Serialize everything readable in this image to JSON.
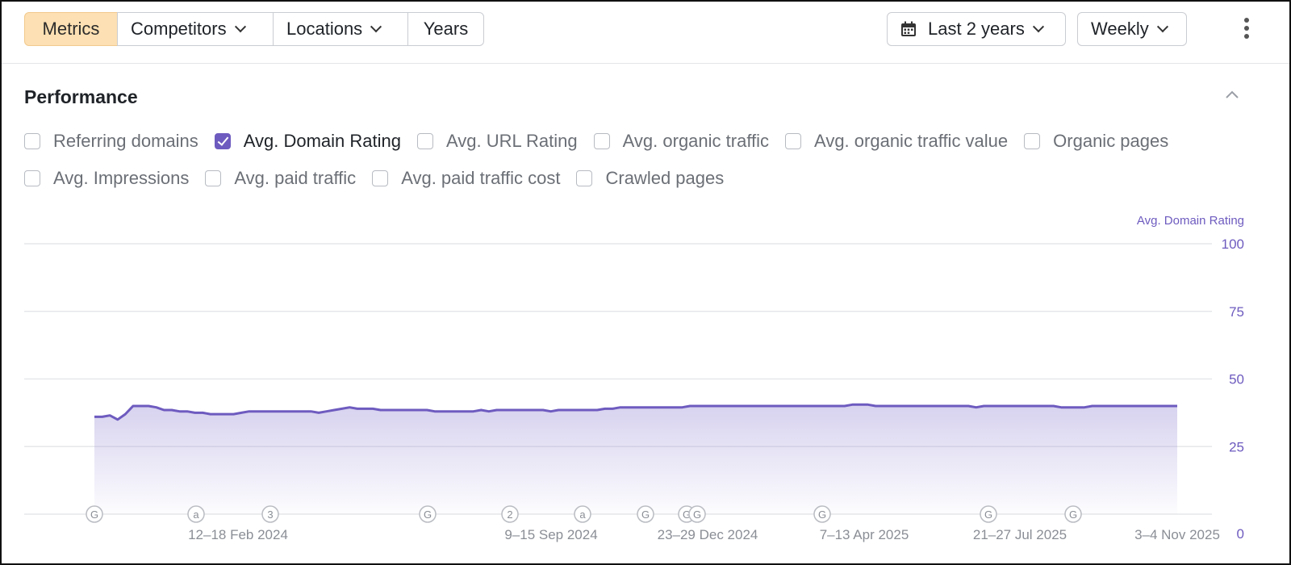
{
  "toolbar": {
    "tabs": [
      "Metrics",
      "Competitors",
      "Locations",
      "Years"
    ],
    "date_range": "Last 2 years",
    "interval": "Weekly"
  },
  "section": {
    "title": "Performance"
  },
  "metrics": [
    {
      "label": "Referring domains",
      "checked": false
    },
    {
      "label": "Avg. Domain Rating",
      "checked": true
    },
    {
      "label": "Avg. URL Rating",
      "checked": false
    },
    {
      "label": "Avg. organic traffic",
      "checked": false
    },
    {
      "label": "Avg. organic traffic value",
      "checked": false
    },
    {
      "label": "Organic pages",
      "checked": false
    },
    {
      "label": "Avg. Impressions",
      "checked": false
    },
    {
      "label": "Avg. paid traffic",
      "checked": false
    },
    {
      "label": "Avg. paid traffic cost",
      "checked": false
    },
    {
      "label": "Crawled pages",
      "checked": false
    }
  ],
  "chart_data": {
    "type": "area",
    "series": [
      {
        "name": "Avg. Domain Rating",
        "color": "#6e5bbf",
        "values": [
          36,
          36,
          36.5,
          35,
          37,
          40,
          40,
          40,
          39.5,
          38.5,
          38.5,
          38,
          38,
          37.5,
          37.5,
          37,
          37,
          37,
          37,
          37.5,
          38,
          38,
          38,
          38,
          38,
          38,
          38,
          38,
          38,
          37.5,
          38,
          38.5,
          39,
          39.5,
          39,
          39,
          39,
          38.5,
          38.5,
          38.5,
          38.5,
          38.5,
          38.5,
          38.5,
          38,
          38,
          38,
          38,
          38,
          38,
          38.5,
          38,
          38.5,
          38.5,
          38.5,
          38.5,
          38.5,
          38.5,
          38.5,
          38,
          38.5,
          38.5,
          38.5,
          38.5,
          38.5,
          38.5,
          39,
          39,
          39.5,
          39.5,
          39.5,
          39.5,
          39.5,
          39.5,
          39.5,
          39.5,
          39.5,
          40,
          40,
          40,
          40,
          40,
          40,
          40,
          40,
          40,
          40,
          40,
          40,
          40,
          40,
          40,
          40,
          40,
          40,
          40,
          40,
          40,
          40.5,
          40.5,
          40.5,
          40,
          40,
          40,
          40,
          40,
          40,
          40,
          40,
          40,
          40,
          40,
          40,
          40,
          39.5,
          40,
          40,
          40,
          40,
          40,
          40,
          40,
          40,
          40,
          40,
          39.5,
          39.5,
          39.5,
          39.5,
          40,
          40,
          40,
          40,
          40,
          40,
          40,
          40,
          40,
          40,
          40,
          40
        ]
      }
    ],
    "y_axis_label": "Avg. Domain Rating",
    "ylim": [
      0,
      100
    ],
    "yticks": [
      0,
      25,
      50,
      75,
      100
    ],
    "x_tick_labels": [
      "12–18 Feb 2024",
      "9–15 Sep 2024",
      "23–29 Dec 2024",
      "7–13 Apr 2025",
      "21–27 Jul 2025",
      "3–4 Nov 2025"
    ],
    "annotation_markers": [
      "G",
      "a",
      "3",
      "G",
      "2",
      "a",
      "G",
      "G",
      "G",
      "G",
      "G",
      "G",
      "G"
    ],
    "grid": true
  }
}
